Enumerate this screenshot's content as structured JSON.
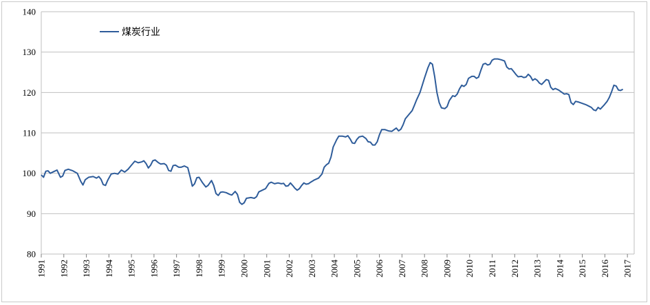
{
  "chart_data": {
    "type": "line",
    "grid": true,
    "legend_position": "top-left",
    "ylim": [
      80,
      140
    ],
    "yticks": [
      80,
      90,
      100,
      110,
      120,
      130,
      140
    ],
    "xlim": [
      1991.0,
      2017.3
    ],
    "xticks": [
      "1991",
      "1992",
      "1993",
      "1994",
      "1995",
      "1996",
      "1997",
      "1998",
      "1999",
      "2000",
      "2001",
      "2002",
      "2003",
      "2004",
      "2005",
      "2006",
      "2007",
      "2008",
      "2009",
      "2010",
      "2011",
      "2012",
      "2013",
      "2014",
      "2015",
      "2016",
      "2017"
    ],
    "series": [
      {
        "name": "煤炭行业",
        "color": "#2e5c9a",
        "points": [
          [
            1991.0,
            99.6
          ],
          [
            1991.1,
            99.0
          ],
          [
            1991.2,
            100.5
          ],
          [
            1991.3,
            100.6
          ],
          [
            1991.4,
            100.0
          ],
          [
            1991.55,
            100.4
          ],
          [
            1991.7,
            100.8
          ],
          [
            1991.85,
            99.0
          ],
          [
            1991.95,
            99.3
          ],
          [
            1992.05,
            100.7
          ],
          [
            1992.2,
            101.0
          ],
          [
            1992.4,
            100.6
          ],
          [
            1992.6,
            100.0
          ],
          [
            1992.75,
            98.0
          ],
          [
            1992.85,
            97.1
          ],
          [
            1992.95,
            98.4
          ],
          [
            1993.1,
            99.0
          ],
          [
            1993.3,
            99.2
          ],
          [
            1993.45,
            98.8
          ],
          [
            1993.55,
            99.2
          ],
          [
            1993.65,
            98.5
          ],
          [
            1993.75,
            97.2
          ],
          [
            1993.85,
            97.0
          ],
          [
            1993.95,
            98.3
          ],
          [
            1994.1,
            99.8
          ],
          [
            1994.25,
            100.0
          ],
          [
            1994.4,
            99.8
          ],
          [
            1994.55,
            100.8
          ],
          [
            1994.7,
            100.3
          ],
          [
            1994.85,
            101.0
          ],
          [
            1995.0,
            102.0
          ],
          [
            1995.15,
            103.0
          ],
          [
            1995.3,
            102.6
          ],
          [
            1995.45,
            102.8
          ],
          [
            1995.55,
            103.1
          ],
          [
            1995.65,
            102.4
          ],
          [
            1995.75,
            101.3
          ],
          [
            1995.85,
            102.0
          ],
          [
            1995.95,
            103.1
          ],
          [
            1996.05,
            103.3
          ],
          [
            1996.2,
            102.6
          ],
          [
            1996.3,
            102.3
          ],
          [
            1996.45,
            102.4
          ],
          [
            1996.55,
            102.0
          ],
          [
            1996.65,
            100.7
          ],
          [
            1996.75,
            100.5
          ],
          [
            1996.85,
            101.9
          ],
          [
            1996.95,
            102.0
          ],
          [
            1997.1,
            101.5
          ],
          [
            1997.2,
            101.5
          ],
          [
            1997.35,
            101.8
          ],
          [
            1997.5,
            101.4
          ],
          [
            1997.6,
            99.2
          ],
          [
            1997.7,
            96.8
          ],
          [
            1997.8,
            97.4
          ],
          [
            1997.9,
            98.9
          ],
          [
            1998.0,
            99.0
          ],
          [
            1998.15,
            97.7
          ],
          [
            1998.3,
            96.6
          ],
          [
            1998.4,
            97.0
          ],
          [
            1998.55,
            98.2
          ],
          [
            1998.65,
            97.0
          ],
          [
            1998.75,
            95.0
          ],
          [
            1998.85,
            94.5
          ],
          [
            1998.95,
            95.3
          ],
          [
            1999.05,
            95.4
          ],
          [
            1999.2,
            95.2
          ],
          [
            1999.35,
            94.8
          ],
          [
            1999.45,
            94.6
          ],
          [
            1999.6,
            95.5
          ],
          [
            1999.7,
            94.8
          ],
          [
            1999.8,
            92.8
          ],
          [
            1999.9,
            92.3
          ],
          [
            2000.0,
            92.7
          ],
          [
            2000.1,
            93.8
          ],
          [
            2000.3,
            94.0
          ],
          [
            2000.45,
            93.8
          ],
          [
            2000.55,
            94.2
          ],
          [
            2000.65,
            95.4
          ],
          [
            2000.8,
            95.8
          ],
          [
            2000.95,
            96.2
          ],
          [
            2001.1,
            97.5
          ],
          [
            2001.2,
            97.8
          ],
          [
            2001.35,
            97.4
          ],
          [
            2001.5,
            97.6
          ],
          [
            2001.65,
            97.4
          ],
          [
            2001.75,
            97.5
          ],
          [
            2001.85,
            96.8
          ],
          [
            2001.95,
            96.9
          ],
          [
            2002.05,
            97.6
          ],
          [
            2002.15,
            97.0
          ],
          [
            2002.25,
            96.3
          ],
          [
            2002.35,
            95.8
          ],
          [
            2002.45,
            96.2
          ],
          [
            2002.55,
            97.0
          ],
          [
            2002.65,
            97.6
          ],
          [
            2002.75,
            97.3
          ],
          [
            2002.85,
            97.4
          ],
          [
            2002.95,
            97.8
          ],
          [
            2003.1,
            98.3
          ],
          [
            2003.3,
            98.8
          ],
          [
            2003.45,
            99.8
          ],
          [
            2003.55,
            101.5
          ],
          [
            2003.65,
            102.1
          ],
          [
            2003.75,
            102.5
          ],
          [
            2003.85,
            104.0
          ],
          [
            2003.95,
            106.5
          ],
          [
            2004.1,
            108.3
          ],
          [
            2004.2,
            109.2
          ],
          [
            2004.35,
            109.2
          ],
          [
            2004.5,
            109.0
          ],
          [
            2004.6,
            109.3
          ],
          [
            2004.7,
            108.5
          ],
          [
            2004.8,
            107.5
          ],
          [
            2004.9,
            107.4
          ],
          [
            2005.0,
            108.4
          ],
          [
            2005.1,
            109.0
          ],
          [
            2005.25,
            109.2
          ],
          [
            2005.4,
            108.6
          ],
          [
            2005.5,
            107.8
          ],
          [
            2005.6,
            107.7
          ],
          [
            2005.7,
            107.0
          ],
          [
            2005.8,
            107.0
          ],
          [
            2005.9,
            107.8
          ],
          [
            2006.0,
            109.5
          ],
          [
            2006.1,
            110.8
          ],
          [
            2006.25,
            110.8
          ],
          [
            2006.4,
            110.5
          ],
          [
            2006.55,
            110.4
          ],
          [
            2006.65,
            110.8
          ],
          [
            2006.75,
            111.2
          ],
          [
            2006.85,
            110.5
          ],
          [
            2006.95,
            110.9
          ],
          [
            2007.05,
            112.0
          ],
          [
            2007.15,
            113.5
          ],
          [
            2007.3,
            114.5
          ],
          [
            2007.45,
            115.5
          ],
          [
            2007.55,
            116.8
          ],
          [
            2007.65,
            118.2
          ],
          [
            2007.8,
            120.0
          ],
          [
            2007.9,
            121.8
          ],
          [
            2008.0,
            123.6
          ],
          [
            2008.15,
            126.1
          ],
          [
            2008.25,
            127.4
          ],
          [
            2008.35,
            127.0
          ],
          [
            2008.45,
            124.0
          ],
          [
            2008.55,
            120.0
          ],
          [
            2008.65,
            117.5
          ],
          [
            2008.75,
            116.2
          ],
          [
            2008.9,
            116.0
          ],
          [
            2009.0,
            116.5
          ],
          [
            2009.1,
            118.0
          ],
          [
            2009.25,
            119.2
          ],
          [
            2009.35,
            119.0
          ],
          [
            2009.45,
            119.6
          ],
          [
            2009.55,
            120.9
          ],
          [
            2009.65,
            121.8
          ],
          [
            2009.75,
            121.5
          ],
          [
            2009.85,
            122.0
          ],
          [
            2009.95,
            123.5
          ],
          [
            2010.1,
            124.0
          ],
          [
            2010.2,
            124.0
          ],
          [
            2010.3,
            123.5
          ],
          [
            2010.4,
            123.8
          ],
          [
            2010.5,
            125.5
          ],
          [
            2010.6,
            127.0
          ],
          [
            2010.7,
            127.2
          ],
          [
            2010.8,
            126.8
          ],
          [
            2010.9,
            127.0
          ],
          [
            2011.0,
            128.0
          ],
          [
            2011.1,
            128.3
          ],
          [
            2011.25,
            128.3
          ],
          [
            2011.4,
            128.1
          ],
          [
            2011.55,
            127.8
          ],
          [
            2011.65,
            126.3
          ],
          [
            2011.75,
            125.8
          ],
          [
            2011.85,
            125.9
          ],
          [
            2011.95,
            125.2
          ],
          [
            2012.05,
            124.5
          ],
          [
            2012.15,
            123.9
          ],
          [
            2012.3,
            124.0
          ],
          [
            2012.4,
            123.7
          ],
          [
            2012.5,
            123.8
          ],
          [
            2012.6,
            124.5
          ],
          [
            2012.7,
            124.0
          ],
          [
            2012.8,
            123.0
          ],
          [
            2012.9,
            123.4
          ],
          [
            2013.0,
            123.0
          ],
          [
            2013.1,
            122.3
          ],
          [
            2013.2,
            122.0
          ],
          [
            2013.3,
            122.6
          ],
          [
            2013.4,
            123.2
          ],
          [
            2013.5,
            123.0
          ],
          [
            2013.6,
            121.3
          ],
          [
            2013.7,
            120.7
          ],
          [
            2013.8,
            121.0
          ],
          [
            2013.95,
            120.6
          ],
          [
            2014.1,
            120.0
          ],
          [
            2014.2,
            119.6
          ],
          [
            2014.3,
            119.7
          ],
          [
            2014.4,
            119.5
          ],
          [
            2014.5,
            117.5
          ],
          [
            2014.6,
            117.0
          ],
          [
            2014.7,
            117.8
          ],
          [
            2014.85,
            117.6
          ],
          [
            2015.0,
            117.3
          ],
          [
            2015.15,
            117.0
          ],
          [
            2015.3,
            116.6
          ],
          [
            2015.4,
            116.3
          ],
          [
            2015.5,
            115.7
          ],
          [
            2015.6,
            115.5
          ],
          [
            2015.7,
            116.3
          ],
          [
            2015.8,
            115.9
          ],
          [
            2015.95,
            116.8
          ],
          [
            2016.1,
            117.8
          ],
          [
            2016.2,
            118.8
          ],
          [
            2016.3,
            120.2
          ],
          [
            2016.4,
            121.8
          ],
          [
            2016.5,
            121.6
          ],
          [
            2016.6,
            120.6
          ],
          [
            2016.7,
            120.5
          ],
          [
            2016.8,
            120.8
          ]
        ]
      }
    ]
  }
}
